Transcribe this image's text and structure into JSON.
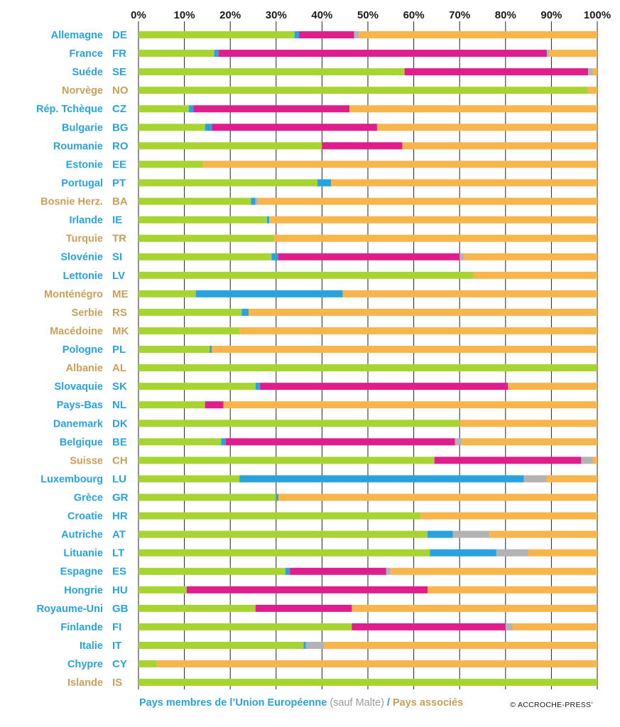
{
  "colors": {
    "eu_label": "#29a3dd",
    "associated_label": "#c9a05a",
    "segments": [
      "#a8d431",
      "#29a3dd",
      "#df1d8c",
      "#b3b3b3",
      "#f8b54b"
    ]
  },
  "footer": {
    "eu": "Pays membres de l’Union Européenne",
    "paren": "(sauf Malte)",
    "slash": " / ",
    "associated": "Pays associés"
  },
  "copyright": "© ACCROCHE-PRESS’",
  "chart_data": {
    "type": "bar",
    "orientation": "horizontal",
    "stacked": true,
    "xlim": [
      0,
      100
    ],
    "ticks": [
      "0%",
      "10%",
      "20%",
      "30%",
      "40%",
      "50%",
      "60%",
      "70%",
      "80%",
      "90%",
      "100%"
    ],
    "grid": true,
    "rows": [
      {
        "name": "Allemagne",
        "code": "DE",
        "group": "eu",
        "values": [
          34,
          1,
          12,
          1,
          52
        ]
      },
      {
        "name": "France",
        "code": "FR",
        "group": "eu",
        "values": [
          16.5,
          1,
          71.5,
          0.5,
          10.5
        ]
      },
      {
        "name": "Suéde",
        "code": "SE",
        "group": "eu",
        "values": [
          58,
          0,
          40,
          1,
          1
        ]
      },
      {
        "name": "Norvège",
        "code": "NO",
        "group": "assoc",
        "values": [
          98,
          0,
          0,
          0,
          2
        ]
      },
      {
        "name": "Rép. Tchèque",
        "code": "CZ",
        "group": "eu",
        "values": [
          11,
          1,
          34,
          0,
          54
        ]
      },
      {
        "name": "Bulgarie",
        "code": "BG",
        "group": "eu",
        "values": [
          14.5,
          1.5,
          36,
          0,
          48
        ]
      },
      {
        "name": "Roumanie",
        "code": "RO",
        "group": "eu",
        "values": [
          40,
          0,
          17.5,
          0,
          42.5
        ]
      },
      {
        "name": "Estonie",
        "code": "EE",
        "group": "eu",
        "values": [
          14,
          0,
          0,
          0,
          86
        ]
      },
      {
        "name": "Portugal",
        "code": "PT",
        "group": "eu",
        "values": [
          39,
          3,
          0,
          0,
          58
        ]
      },
      {
        "name": "Bosnie Herz.",
        "code": "BA",
        "group": "assoc",
        "values": [
          24.5,
          1,
          0,
          0.5,
          74
        ]
      },
      {
        "name": "Irlande",
        "code": "IE",
        "group": "eu",
        "values": [
          28,
          0.5,
          0,
          0,
          71.5
        ]
      },
      {
        "name": "Turquie",
        "code": "TR",
        "group": "assoc",
        "values": [
          29.5,
          0,
          0,
          0,
          70.5
        ]
      },
      {
        "name": "Slovénie",
        "code": "SI",
        "group": "eu",
        "values": [
          29,
          1.5,
          39.5,
          1,
          29
        ]
      },
      {
        "name": "Lettonie",
        "code": "LV",
        "group": "eu",
        "values": [
          73,
          0,
          0,
          0,
          27
        ]
      },
      {
        "name": "Monténégro",
        "code": "ME",
        "group": "assoc",
        "values": [
          12.5,
          32,
          0,
          0,
          55.5
        ]
      },
      {
        "name": "Serbie",
        "code": "RS",
        "group": "assoc",
        "values": [
          22.5,
          1.5,
          0,
          0,
          76
        ]
      },
      {
        "name": "Macédoine",
        "code": "MK",
        "group": "assoc",
        "values": [
          22,
          0,
          0,
          0,
          78
        ]
      },
      {
        "name": "Pologne",
        "code": "PL",
        "group": "eu",
        "values": [
          15.5,
          0.5,
          0,
          0,
          84
        ]
      },
      {
        "name": "Albanie",
        "code": "AL",
        "group": "assoc",
        "values": [
          100,
          0,
          0,
          0,
          0
        ]
      },
      {
        "name": "Slovaquie",
        "code": "SK",
        "group": "eu",
        "values": [
          25.5,
          1,
          54,
          0,
          19.5
        ]
      },
      {
        "name": "Pays-Bas",
        "code": "NL",
        "group": "eu",
        "values": [
          14.5,
          0,
          4,
          0,
          81.5
        ]
      },
      {
        "name": "Danemark",
        "code": "DK",
        "group": "eu",
        "values": [
          70,
          0,
          0,
          0,
          30
        ]
      },
      {
        "name": "Belgique",
        "code": "BE",
        "group": "eu",
        "values": [
          18,
          1,
          50,
          1.5,
          29.5
        ]
      },
      {
        "name": "Suisse",
        "code": "CH",
        "group": "assoc",
        "values": [
          64.5,
          0,
          32,
          2.5,
          1
        ]
      },
      {
        "name": "Luxembourg",
        "code": "LU",
        "group": "eu",
        "values": [
          22,
          62,
          0,
          5,
          11
        ]
      },
      {
        "name": "Grèce",
        "code": "GR",
        "group": "eu",
        "values": [
          30,
          0.5,
          0,
          0,
          69.5
        ]
      },
      {
        "name": "Croatie",
        "code": "HR",
        "group": "eu",
        "values": [
          61.5,
          0,
          0,
          0,
          38.5
        ]
      },
      {
        "name": "Autriche",
        "code": "AT",
        "group": "eu",
        "values": [
          63,
          5.5,
          0,
          8,
          23.5
        ]
      },
      {
        "name": "Lituanie",
        "code": "LT",
        "group": "eu",
        "values": [
          63.5,
          14.5,
          0,
          7,
          15
        ]
      },
      {
        "name": "Espagne",
        "code": "ES",
        "group": "eu",
        "values": [
          32,
          1,
          21,
          1,
          45
        ]
      },
      {
        "name": "Hongrie",
        "code": "HU",
        "group": "eu",
        "values": [
          10.5,
          0,
          52.5,
          0,
          37
        ]
      },
      {
        "name": "Royaume-Uni",
        "code": "GB",
        "group": "eu",
        "values": [
          25.5,
          0,
          21,
          0,
          53.5
        ]
      },
      {
        "name": "Finlande",
        "code": "FI",
        "group": "eu",
        "values": [
          46.5,
          0,
          33.5,
          1.5,
          18.5
        ]
      },
      {
        "name": "Italie",
        "code": "IT",
        "group": "eu",
        "values": [
          36,
          0.5,
          0,
          4,
          59.5
        ]
      },
      {
        "name": "Chypre",
        "code": "CY",
        "group": "eu",
        "values": [
          4,
          0,
          0,
          0,
          96
        ]
      },
      {
        "name": "Islande",
        "code": "IS",
        "group": "assoc",
        "values": [
          100,
          0,
          0,
          0,
          0
        ]
      }
    ]
  }
}
